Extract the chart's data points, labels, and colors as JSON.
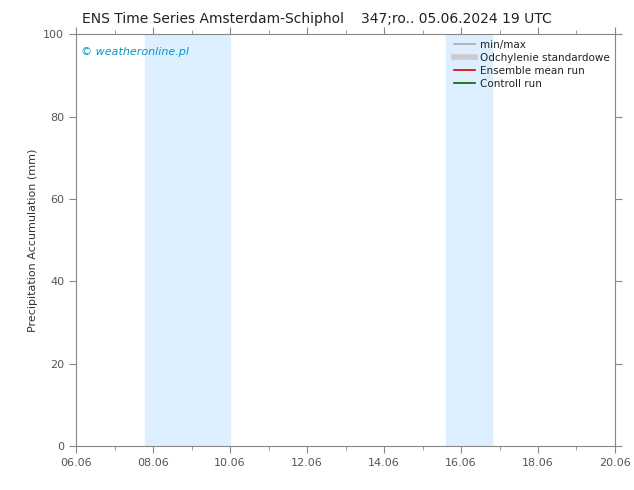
{
  "title_left": "ENS Time Series Amsterdam-Schiphol",
  "title_right": "347;ro.. 05.06.2024 19 UTC",
  "ylabel": "Precipitation Accumulation (mm)",
  "watermark": "© weatheronline.pl",
  "watermark_color": "#0099cc",
  "ylim": [
    0,
    100
  ],
  "yticks": [
    0,
    20,
    40,
    60,
    80,
    100
  ],
  "xlabel_ticks": [
    "06.06",
    "08.06",
    "10.06",
    "12.06",
    "14.06",
    "16.06",
    "18.06",
    "20.06"
  ],
  "x_positions": [
    0,
    2,
    4,
    6,
    8,
    10,
    12,
    14
  ],
  "xlim": [
    0,
    14
  ],
  "background_color": "#ffffff",
  "plot_bg_color": "#ffffff",
  "shaded_bands": [
    [
      1.8,
      2.5
    ],
    [
      2.5,
      4.0
    ],
    [
      9.6,
      10.1
    ],
    [
      10.1,
      10.8
    ]
  ],
  "band_color": "#ddeeff",
  "legend_items": [
    {
      "label": "min/max",
      "color": "#aaaaaa",
      "lw": 1.2,
      "style": "solid"
    },
    {
      "label": "Odchylenie standardowe",
      "color": "#cccccc",
      "lw": 4,
      "style": "solid"
    },
    {
      "label": "Ensemble mean run",
      "color": "#dd0000",
      "lw": 1.2,
      "style": "solid"
    },
    {
      "label": "Controll run",
      "color": "#006600",
      "lw": 1.2,
      "style": "solid"
    }
  ],
  "tick_label_fontsize": 8,
  "axis_label_fontsize": 8,
  "title_fontsize": 10,
  "border_color": "#888888",
  "tick_color": "#555555"
}
